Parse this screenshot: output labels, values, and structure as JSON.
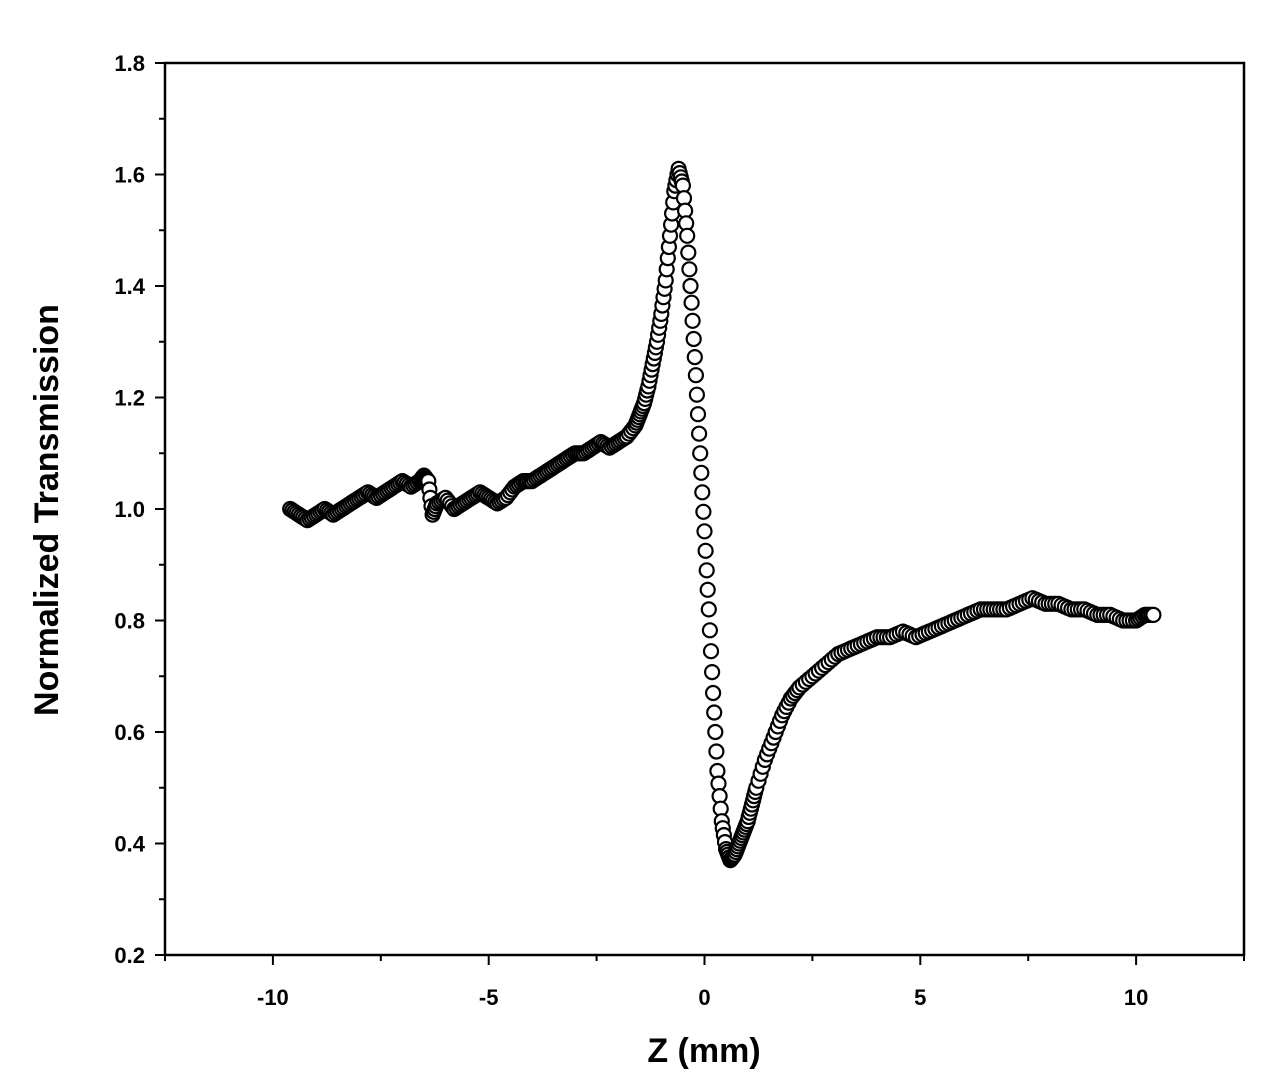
{
  "chart_data": {
    "type": "scatter",
    "xlabel": "Z (mm)",
    "ylabel": "Normalized Transmission",
    "xlim": [
      -12.5,
      12.5
    ],
    "ylim": [
      0.2,
      1.8
    ],
    "x_ticks": [
      -10,
      -5,
      0,
      5,
      10
    ],
    "x_tick_labels": [
      "-10",
      "-5",
      "0",
      "5",
      "10"
    ],
    "x_minor_step": 2.5,
    "y_ticks": [
      0.2,
      0.4,
      0.6,
      0.8,
      1.0,
      1.2,
      1.4,
      1.6,
      1.8
    ],
    "y_tick_labels": [
      "0.2",
      "0.4",
      "0.6",
      "0.8",
      "1.0",
      "1.2",
      "1.4",
      "1.6",
      "1.8"
    ],
    "y_minor_step": 0.1,
    "grid": false,
    "marker": "open-circle",
    "series": [
      {
        "x": [
          -9.6,
          -9.4,
          -9.2,
          -9.0,
          -8.8,
          -8.6,
          -8.4,
          -8.2,
          -8.0,
          -7.8,
          -7.6,
          -7.4,
          -7.2,
          -7.0,
          -6.8,
          -6.6,
          -6.5,
          -6.4,
          -6.3,
          -6.2,
          -6.0,
          -5.8,
          -5.6,
          -5.4,
          -5.2,
          -5.0,
          -4.8,
          -4.6,
          -4.4,
          -4.2,
          -4.0,
          -3.8,
          -3.6,
          -3.4,
          -3.2,
          -3.0,
          -2.8,
          -2.6,
          -2.4,
          -2.2,
          -2.0,
          -1.8,
          -1.6,
          -1.5,
          -1.4,
          -1.3,
          -1.2,
          -1.1,
          -1.0,
          -0.9,
          -0.8,
          -0.7,
          -0.6,
          -0.5,
          -0.4,
          -0.3,
          -0.2,
          -0.1,
          0.0,
          0.1,
          0.2,
          0.3,
          0.4,
          0.5,
          0.6,
          0.7,
          0.8,
          0.9,
          1.0,
          1.1,
          1.2,
          1.4,
          1.6,
          1.8,
          2.0,
          2.2,
          2.5,
          2.8,
          3.1,
          3.4,
          3.7,
          4.0,
          4.3,
          4.6,
          4.9,
          5.2,
          5.5,
          5.8,
          6.1,
          6.4,
          6.7,
          7.0,
          7.3,
          7.6,
          7.9,
          8.2,
          8.5,
          8.8,
          9.1,
          9.4,
          9.7,
          10.0,
          10.2,
          10.4
        ],
        "y": [
          1.0,
          0.99,
          0.98,
          0.99,
          1.0,
          0.99,
          1.0,
          1.01,
          1.02,
          1.03,
          1.02,
          1.03,
          1.04,
          1.05,
          1.04,
          1.05,
          1.06,
          1.05,
          0.99,
          1.01,
          1.02,
          1.0,
          1.01,
          1.02,
          1.03,
          1.02,
          1.01,
          1.02,
          1.04,
          1.05,
          1.05,
          1.06,
          1.07,
          1.08,
          1.09,
          1.1,
          1.1,
          1.11,
          1.12,
          1.11,
          1.12,
          1.13,
          1.15,
          1.17,
          1.19,
          1.22,
          1.26,
          1.3,
          1.35,
          1.41,
          1.49,
          1.57,
          1.61,
          1.58,
          1.49,
          1.37,
          1.24,
          1.1,
          0.96,
          0.82,
          0.67,
          0.53,
          0.44,
          0.39,
          0.37,
          0.38,
          0.4,
          0.42,
          0.44,
          0.47,
          0.5,
          0.55,
          0.59,
          0.63,
          0.66,
          0.68,
          0.7,
          0.72,
          0.74,
          0.75,
          0.76,
          0.77,
          0.77,
          0.78,
          0.77,
          0.78,
          0.79,
          0.8,
          0.81,
          0.82,
          0.82,
          0.82,
          0.83,
          0.84,
          0.83,
          0.83,
          0.82,
          0.82,
          0.81,
          0.81,
          0.8,
          0.8,
          0.81,
          0.81
        ]
      }
    ]
  }
}
